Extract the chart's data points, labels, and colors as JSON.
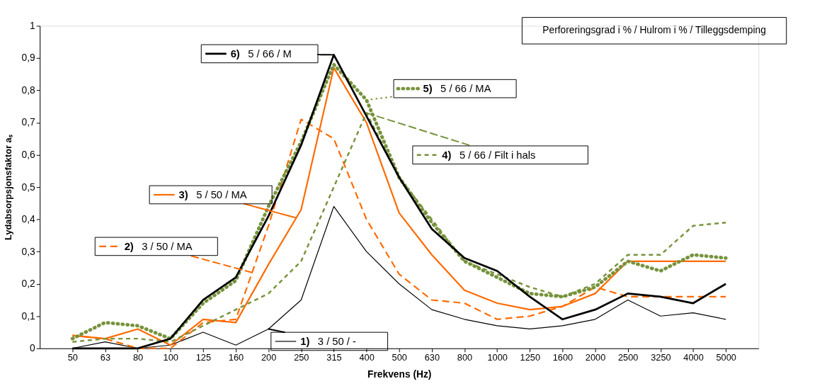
{
  "chart_data": {
    "type": "line",
    "xlabel": "Frekvens (Hz)",
    "ylabel": "Lydabsorpsjonsfaktor  aₛ",
    "categories": [
      "50",
      "63",
      "80",
      "100",
      "125",
      "160",
      "200",
      "250",
      "315",
      "400",
      "500",
      "630",
      "800",
      "1000",
      "1250",
      "1600",
      "2000",
      "2500",
      "3250",
      "4000",
      "5000"
    ],
    "ylim": [
      0,
      1
    ],
    "yticks": [
      0,
      {
        "value": 0.1,
        "label": "0,1"
      },
      {
        "value": 0.2,
        "label": "0,2"
      },
      {
        "value": 0.3,
        "label": "0,3"
      },
      {
        "value": 0.4,
        "label": "0,4"
      },
      {
        "value": 0.5,
        "label": "0,5"
      },
      {
        "value": 0.6,
        "label": "0,6"
      },
      {
        "value": 0.7,
        "label": "0,7"
      },
      {
        "value": 0.8,
        "label": "0,8"
      },
      {
        "value": 0.9,
        "label": "0,9"
      },
      1
    ],
    "grid": false,
    "legend": "left",
    "marker": "none",
    "annotations": [
      "Perforeringsgrad i % /  Hulrom i % / Tilleggsdemping"
    ],
    "series": [
      {
        "name": "1) 3 / 50 / -",
        "color": "#000000",
        "line_style": "solid",
        "values": [
          0,
          0.02,
          0,
          0.01,
          0.05,
          0.01,
          0.06,
          0.15,
          0.44,
          0.3,
          0.2,
          0.12,
          0.09,
          0.07,
          0.06,
          0.07,
          0.09,
          0.15,
          0.1,
          0.11,
          0.09
        ]
      },
      {
        "name": "2) 3 / 50 / MA",
        "color": "#ff6a00",
        "line_style": "dashed",
        "values": [
          0.04,
          0.03,
          0,
          0,
          0.08,
          0.09,
          0.38,
          0.71,
          0.65,
          0.4,
          0.23,
          0.15,
          0.14,
          0.09,
          0.1,
          0.13,
          0.19,
          0.16,
          0.16,
          0.16,
          0.16
        ]
      },
      {
        "name": "3) 5 / 50 / MA",
        "color": "#ff6a00",
        "line_style": "solid",
        "values": [
          0.04,
          0.03,
          0.06,
          0.01,
          0.09,
          0.08,
          0.26,
          0.43,
          0.87,
          0.7,
          0.42,
          0.29,
          0.18,
          0.14,
          0.12,
          0.13,
          0.17,
          0.27,
          0.27,
          0.27,
          0.27
        ]
      },
      {
        "name": "4) 5 / 66 / Filt i hals",
        "color": "#77933c",
        "line_style": "dashed",
        "values": [
          0.02,
          0.03,
          0.03,
          0.02,
          0.07,
          0.12,
          0.17,
          0.27,
          0.5,
          0.73,
          0.53,
          0.4,
          0.27,
          0.23,
          0.19,
          0.16,
          0.2,
          0.29,
          0.29,
          0.38,
          0.39
        ]
      },
      {
        "name": "5) 5 / 66 / MA",
        "color": "#77933c",
        "line_style": "dotted",
        "values": [
          0.03,
          0.08,
          0.07,
          0.03,
          0.14,
          0.21,
          0.44,
          0.64,
          0.88,
          0.77,
          0.53,
          0.39,
          0.27,
          0.22,
          0.17,
          0.16,
          0.19,
          0.27,
          0.24,
          0.29,
          0.28
        ]
      },
      {
        "name": "6) 5 / 66 / M",
        "color": "#000000",
        "line_style": "solid",
        "values": [
          0,
          0,
          0,
          0.03,
          0.15,
          0.22,
          0.41,
          0.63,
          0.91,
          0.72,
          0.53,
          0.37,
          0.28,
          0.24,
          0.16,
          0.09,
          0.12,
          0.17,
          0.16,
          0.14,
          0.2
        ]
      }
    ]
  }
}
